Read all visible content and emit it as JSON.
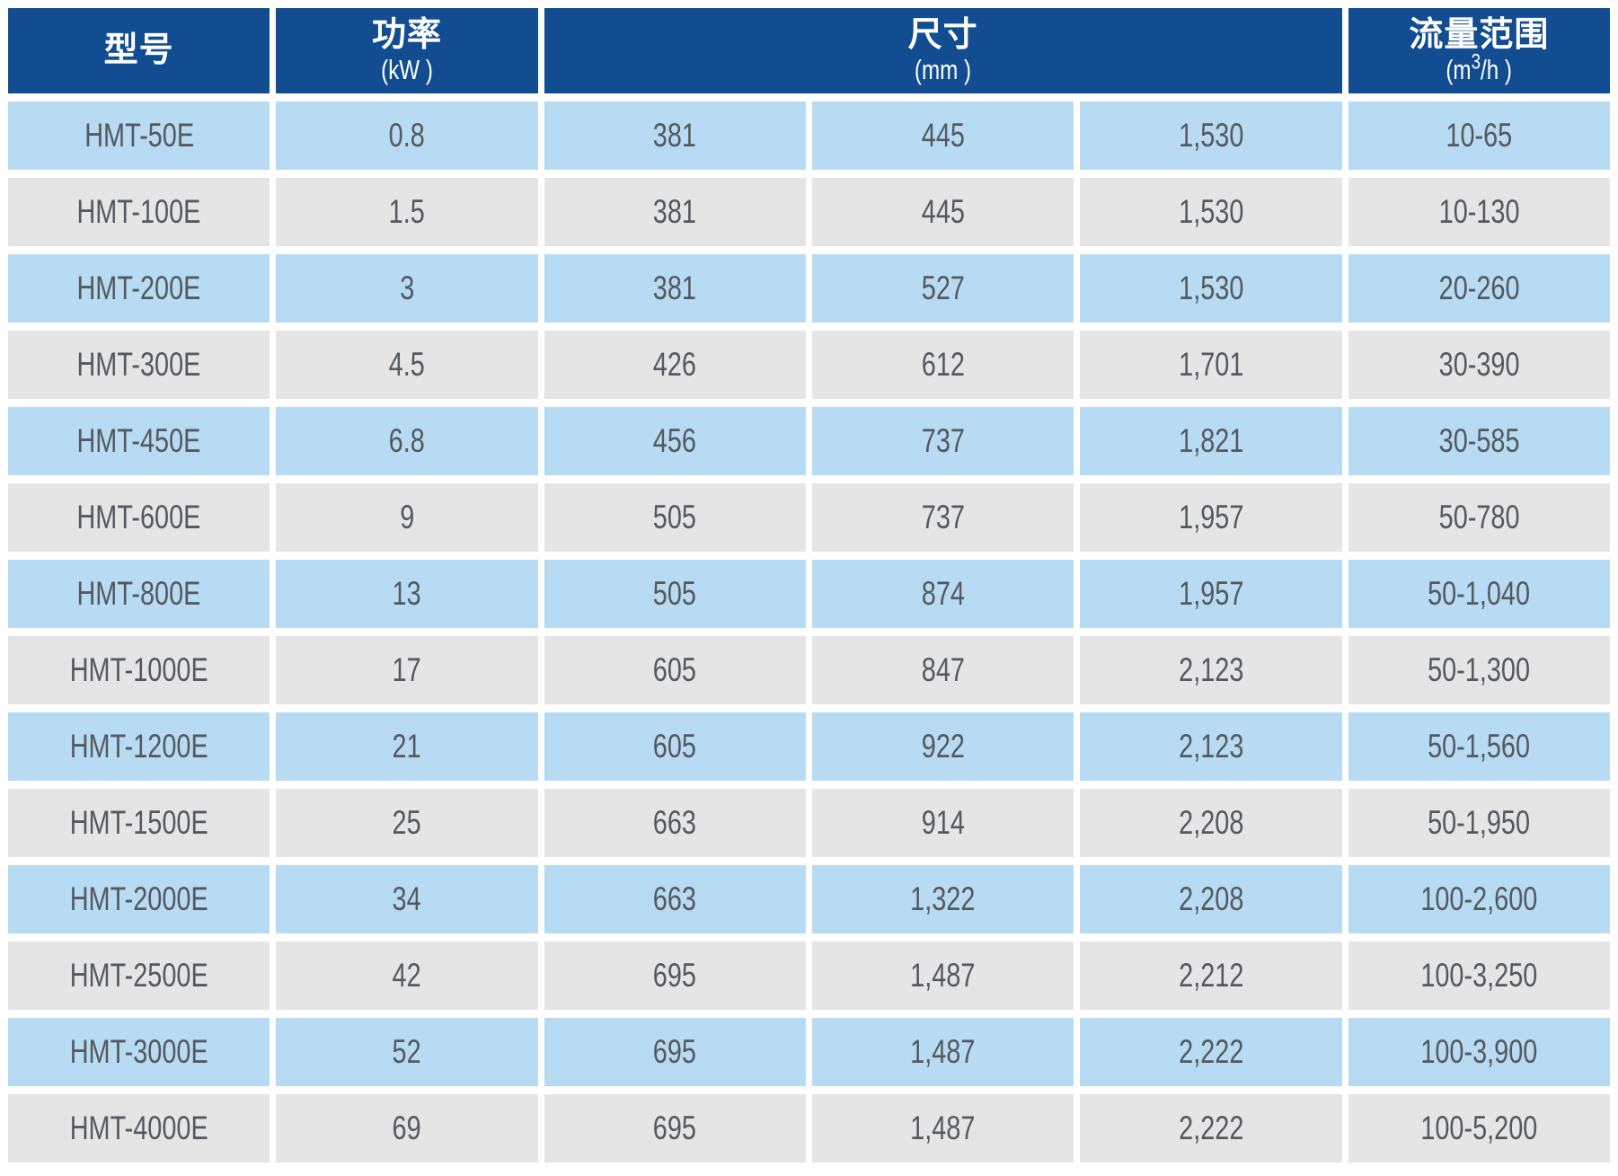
{
  "table": {
    "headers": {
      "model": {
        "label": "型号"
      },
      "power": {
        "label": "功率",
        "unit": "(kW )"
      },
      "dimensions": {
        "label": "尺寸",
        "unit": "(mm )"
      },
      "flow": {
        "label": "流量范围",
        "unit_base": "(m",
        "unit_sup": "3",
        "unit_rest": "/h )"
      }
    },
    "rows": [
      {
        "model": "HMT-50E",
        "power": "0.8",
        "dim1": "381",
        "dim2": "445",
        "dim3": "1,530",
        "flow": "10-65"
      },
      {
        "model": "HMT-100E",
        "power": "1.5",
        "dim1": "381",
        "dim2": "445",
        "dim3": "1,530",
        "flow": "10-130"
      },
      {
        "model": "HMT-200E",
        "power": "3",
        "dim1": "381",
        "dim2": "527",
        "dim3": "1,530",
        "flow": "20-260"
      },
      {
        "model": "HMT-300E",
        "power": "4.5",
        "dim1": "426",
        "dim2": "612",
        "dim3": "1,701",
        "flow": "30-390"
      },
      {
        "model": "HMT-450E",
        "power": "6.8",
        "dim1": "456",
        "dim2": "737",
        "dim3": "1,821",
        "flow": "30-585"
      },
      {
        "model": "HMT-600E",
        "power": "9",
        "dim1": "505",
        "dim2": "737",
        "dim3": "1,957",
        "flow": "50-780"
      },
      {
        "model": "HMT-800E",
        "power": "13",
        "dim1": "505",
        "dim2": "874",
        "dim3": "1,957",
        "flow": "50-1,040"
      },
      {
        "model": "HMT-1000E",
        "power": "17",
        "dim1": "605",
        "dim2": "847",
        "dim3": "2,123",
        "flow": "50-1,300"
      },
      {
        "model": "HMT-1200E",
        "power": "21",
        "dim1": "605",
        "dim2": "922",
        "dim3": "2,123",
        "flow": "50-1,560"
      },
      {
        "model": "HMT-1500E",
        "power": "25",
        "dim1": "663",
        "dim2": "914",
        "dim3": "2,208",
        "flow": "50-1,950"
      },
      {
        "model": "HMT-2000E",
        "power": "34",
        "dim1": "663",
        "dim2": "1,322",
        "dim3": "2,208",
        "flow": "100-2,600"
      },
      {
        "model": "HMT-2500E",
        "power": "42",
        "dim1": "695",
        "dim2": "1,487",
        "dim3": "2,212",
        "flow": "100-3,250"
      },
      {
        "model": "HMT-3000E",
        "power": "52",
        "dim1": "695",
        "dim2": "1,487",
        "dim3": "2,222",
        "flow": "100-3,900"
      },
      {
        "model": "HMT-4000E",
        "power": "69",
        "dim1": "695",
        "dim2": "1,487",
        "dim3": "2,222",
        "flow": "100-5,200"
      }
    ],
    "colors": {
      "header_bg": "#124d91",
      "row_blue": "#b6dbf2",
      "row_gray": "#e5e5e5",
      "header_text": "#ffffff",
      "cell_text": "#55595e",
      "page_bg": "#ffffff"
    }
  }
}
